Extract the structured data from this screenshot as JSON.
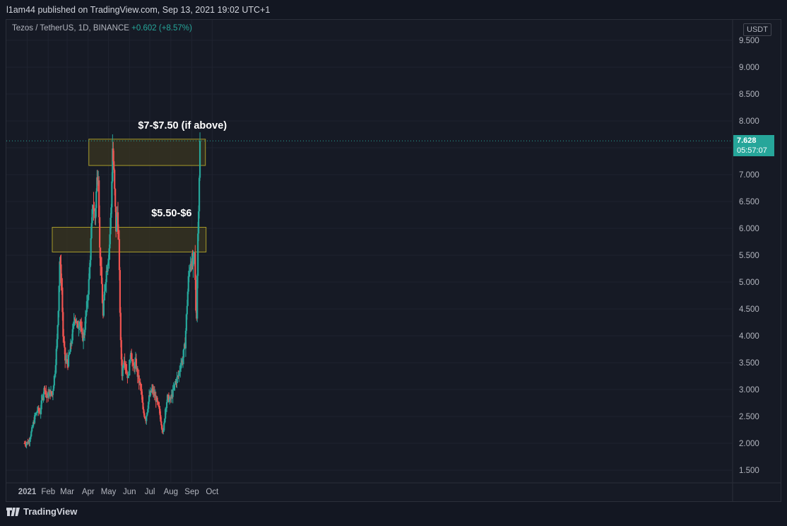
{
  "header": {
    "published": "l1am44 published on TradingView.com, Sep 13, 2021 19:02 UTC+1"
  },
  "symbol": {
    "name": "Tezos / TetherUS, 1D, BINANCE",
    "change": "+0.602 (+8.57%)"
  },
  "currency_button": "USDT",
  "last_price": {
    "price": "7.628",
    "countdown": "05:57:07"
  },
  "footer": {
    "brand": "TradingView"
  },
  "colors": {
    "up": "#26a69a",
    "down": "#ef5350",
    "zone_border": "#a69b2a",
    "zone_fill": "#3a3520"
  },
  "chart_data": {
    "type": "candlestick",
    "title": "Tezos / TetherUS, 1D, BINANCE",
    "ylim": [
      1.35,
      9.85
    ],
    "y_ticks": [
      "9.500",
      "9.000",
      "8.500",
      "8.000",
      "7.500",
      "7.000",
      "6.500",
      "6.000",
      "5.500",
      "5.000",
      "4.500",
      "4.000",
      "3.500",
      "3.000",
      "2.500",
      "2.000",
      "1.500"
    ],
    "x_ticks": [
      "2021",
      "Feb",
      "Mar",
      "Apr",
      "May",
      "Jun",
      "Jul",
      "Aug",
      "Sep",
      "Oct"
    ],
    "zones": [
      {
        "label": "$7-$7.50 (if above)",
        "low": 7.17,
        "high": 7.66,
        "start": "2021-04-02",
        "end": "2021-09-21"
      },
      {
        "label": "$5.50-$6",
        "low": 5.56,
        "high": 6.02,
        "start": "2021-02-07",
        "end": "2021-09-22"
      }
    ],
    "close_path": [
      [
        "2020-12-28",
        2.0
      ],
      [
        "2021-01-03",
        2.02
      ],
      [
        "2021-01-08",
        2.25
      ],
      [
        "2021-01-12",
        2.48
      ],
      [
        "2021-01-16",
        2.62
      ],
      [
        "2021-01-20",
        2.58
      ],
      [
        "2021-01-24",
        2.9
      ],
      [
        "2021-01-27",
        3.05
      ],
      [
        "2021-01-30",
        2.85
      ],
      [
        "2021-02-03",
        2.95
      ],
      [
        "2021-02-07",
        2.9
      ],
      [
        "2021-02-11",
        3.35
      ],
      [
        "2021-02-14",
        3.9
      ],
      [
        "2021-02-16",
        4.55
      ],
      [
        "2021-02-18",
        5.4
      ],
      [
        "2021-02-21",
        4.9
      ],
      [
        "2021-02-23",
        4.0
      ],
      [
        "2021-02-26",
        3.55
      ],
      [
        "2021-03-02",
        3.5
      ],
      [
        "2021-03-05",
        3.7
      ],
      [
        "2021-03-09",
        4.05
      ],
      [
        "2021-03-12",
        4.4
      ],
      [
        "2021-03-16",
        4.15
      ],
      [
        "2021-03-20",
        4.3
      ],
      [
        "2021-03-23",
        3.95
      ],
      [
        "2021-03-26",
        4.05
      ],
      [
        "2021-03-30",
        4.55
      ],
      [
        "2021-04-02",
        5.0
      ],
      [
        "2021-04-05",
        5.75
      ],
      [
        "2021-04-08",
        6.5
      ],
      [
        "2021-04-11",
        6.2
      ],
      [
        "2021-04-14",
        6.9
      ],
      [
        "2021-04-16",
        7.05
      ],
      [
        "2021-04-18",
        5.6
      ],
      [
        "2021-04-21",
        4.95
      ],
      [
        "2021-04-23",
        4.35
      ],
      [
        "2021-04-26",
        5.0
      ],
      [
        "2021-04-29",
        5.3
      ],
      [
        "2021-05-02",
        5.65
      ],
      [
        "2021-05-05",
        6.4
      ],
      [
        "2021-05-07",
        7.5
      ],
      [
        "2021-05-09",
        7.0
      ],
      [
        "2021-05-12",
        6.0
      ],
      [
        "2021-05-14",
        6.3
      ],
      [
        "2021-05-16",
        5.75
      ],
      [
        "2021-05-19",
        3.85
      ],
      [
        "2021-05-21",
        3.3
      ],
      [
        "2021-05-24",
        3.6
      ],
      [
        "2021-05-27",
        3.4
      ],
      [
        "2021-05-30",
        3.2
      ],
      [
        "2021-06-03",
        3.75
      ],
      [
        "2021-06-06",
        3.4
      ],
      [
        "2021-06-10",
        3.5
      ],
      [
        "2021-06-14",
        3.2
      ],
      [
        "2021-06-18",
        3.0
      ],
      [
        "2021-06-21",
        2.6
      ],
      [
        "2021-06-25",
        2.45
      ],
      [
        "2021-06-30",
        2.85
      ],
      [
        "2021-07-04",
        3.0
      ],
      [
        "2021-07-08",
        2.9
      ],
      [
        "2021-07-12",
        2.75
      ],
      [
        "2021-07-15",
        2.6
      ],
      [
        "2021-07-19",
        2.3
      ],
      [
        "2021-07-21",
        2.2
      ],
      [
        "2021-07-24",
        2.65
      ],
      [
        "2021-07-27",
        2.85
      ],
      [
        "2021-07-31",
        2.8
      ],
      [
        "2021-08-04",
        2.95
      ],
      [
        "2021-08-08",
        3.15
      ],
      [
        "2021-08-12",
        3.25
      ],
      [
        "2021-08-15",
        3.45
      ],
      [
        "2021-08-19",
        3.6
      ],
      [
        "2021-08-22",
        3.85
      ],
      [
        "2021-08-25",
        4.6
      ],
      [
        "2021-08-27",
        5.05
      ],
      [
        "2021-08-30",
        5.4
      ],
      [
        "2021-09-02",
        5.3
      ],
      [
        "2021-09-05",
        5.5
      ],
      [
        "2021-09-07",
        4.5
      ],
      [
        "2021-09-08",
        4.4
      ],
      [
        "2021-09-10",
        5.9
      ],
      [
        "2021-09-12",
        7.02
      ],
      [
        "2021-09-13",
        7.628
      ]
    ]
  }
}
